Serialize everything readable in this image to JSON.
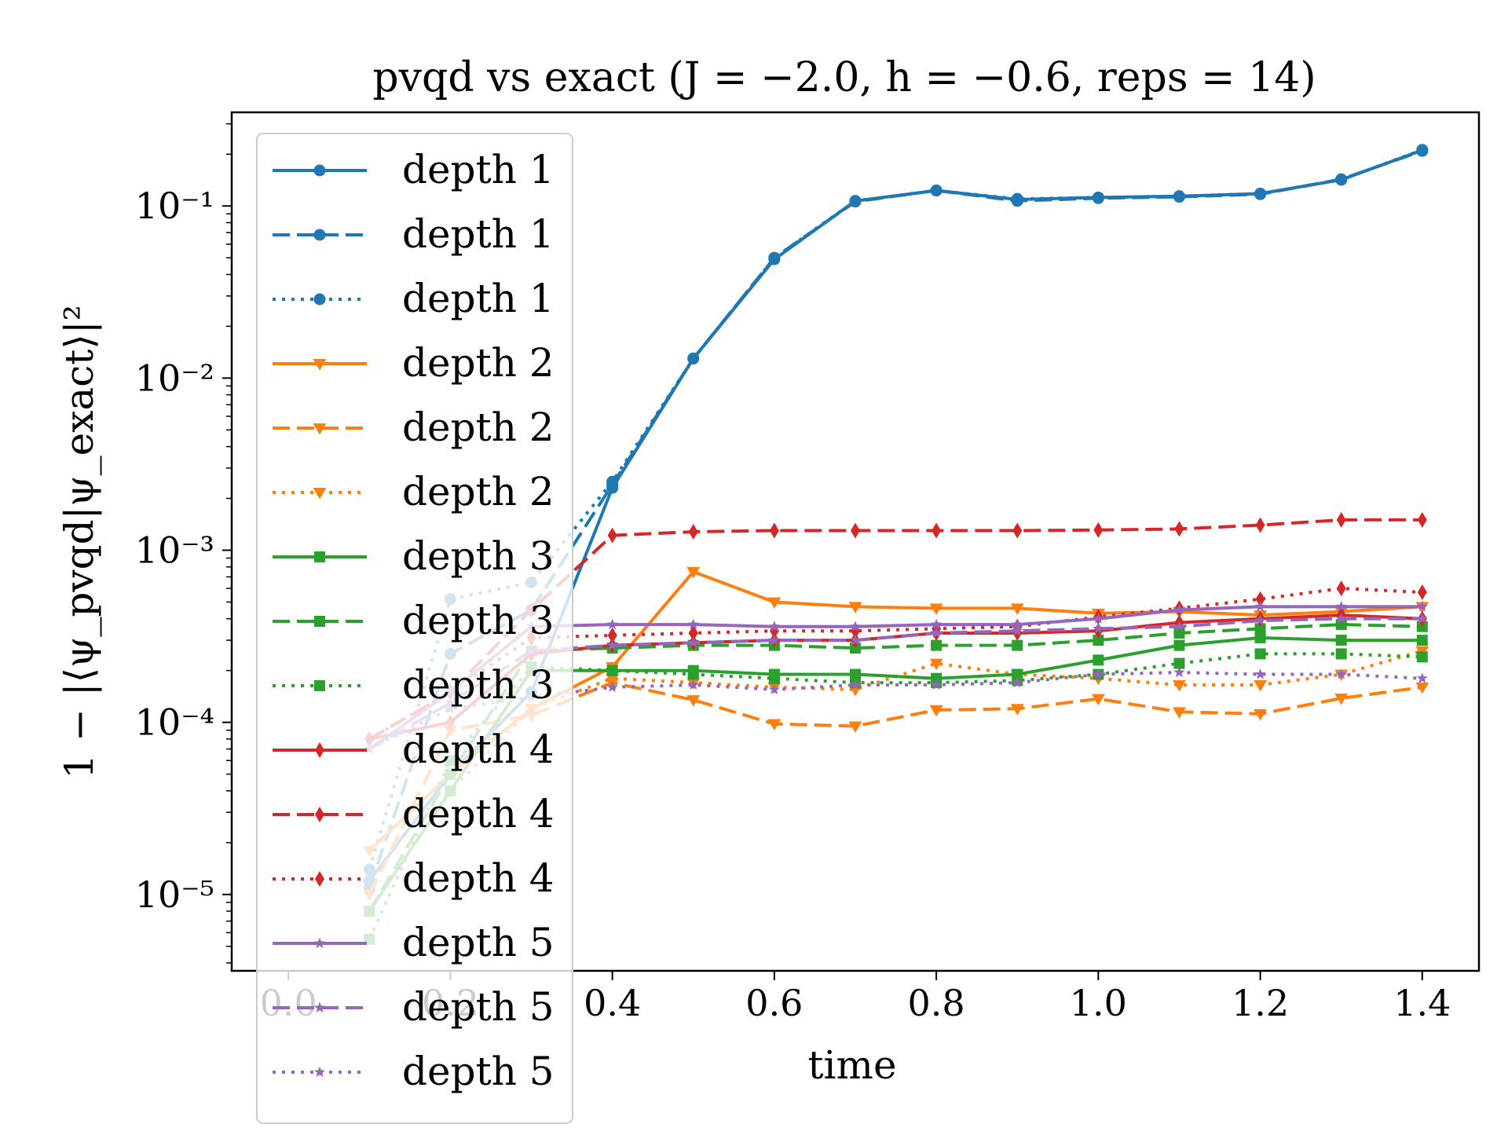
{
  "chart_data": {
    "type": "line",
    "title": "pvqd vs exact (J = −2.0, h = −0.6, reps = 14)",
    "xlabel": "time",
    "ylabel": "1 − |⟨ψ_pvqd|ψ_exact⟩|²",
    "yscale": "log",
    "xlim": [
      -0.07,
      1.47
    ],
    "ylim": [
      3.6e-06,
      0.35
    ],
    "x_ticks": [
      "0.0",
      "0.2",
      "0.4",
      "0.6",
      "0.8",
      "1.0",
      "1.2",
      "1.4"
    ],
    "y_ticks": [
      "10⁻⁵",
      "10⁻⁴",
      "10⁻³",
      "10⁻²",
      "10⁻¹"
    ],
    "legend_position": "upper-left",
    "x": [
      0.1,
      0.2,
      0.3,
      0.4,
      0.5,
      0.6,
      0.7,
      0.8,
      0.9,
      1.0,
      1.1,
      1.2,
      1.3,
      1.4
    ],
    "series": [
      {
        "name": "depth 1",
        "color": "#1f77b4",
        "linestyle": "solid",
        "marker": "circle",
        "values": [
          1.2e-05,
          5e-05,
          0.00015,
          0.0023,
          0.013,
          0.049,
          0.107,
          0.123,
          0.109,
          0.112,
          0.114,
          0.118,
          0.142,
          0.211
        ]
      },
      {
        "name": "depth 1",
        "color": "#1f77b4",
        "linestyle": "dashed",
        "marker": "circle",
        "values": [
          1.1e-05,
          0.00025,
          0.00045,
          0.0024,
          0.013,
          0.05,
          0.106,
          0.123,
          0.107,
          0.111,
          0.113,
          0.117,
          0.143,
          0.209
        ]
      },
      {
        "name": "depth 1",
        "color": "#1f77b4",
        "linestyle": "dotted",
        "marker": "circle",
        "values": [
          1.4e-05,
          0.00052,
          0.00065,
          0.0025,
          0.013,
          0.05,
          0.107,
          0.123,
          0.11,
          0.112,
          0.114,
          0.118,
          0.142,
          0.212
        ]
      },
      {
        "name": "depth 2",
        "color": "#ff7f0e",
        "linestyle": "solid",
        "marker": "triangle-down",
        "values": [
          1.8e-05,
          5e-05,
          0.00012,
          0.00021,
          0.00075,
          0.0005,
          0.00047,
          0.00046,
          0.00046,
          0.00043,
          0.00044,
          0.00042,
          0.00044,
          0.00047
        ]
      },
      {
        "name": "depth 2",
        "color": "#ff7f0e",
        "linestyle": "dashed",
        "marker": "triangle-down",
        "values": [
          1e-05,
          9e-05,
          0.00011,
          0.00017,
          0.000135,
          9.8e-05,
          9.5e-05,
          0.000118,
          0.00012,
          0.000137,
          0.000115,
          0.000112,
          0.000138,
          0.00016
        ]
      },
      {
        "name": "depth 2",
        "color": "#ff7f0e",
        "linestyle": "dotted",
        "marker": "triangle-down",
        "values": [
          8e-06,
          4e-05,
          0.00012,
          0.00018,
          0.00017,
          0.00016,
          0.000155,
          0.00022,
          0.00019,
          0.00018,
          0.000165,
          0.000165,
          0.00019,
          0.00026
        ]
      },
      {
        "name": "depth 3",
        "color": "#2ca02c",
        "linestyle": "solid",
        "marker": "square",
        "values": [
          8e-06,
          4e-05,
          0.0002,
          0.0002,
          0.0002,
          0.00019,
          0.00019,
          0.00018,
          0.00019,
          0.00023,
          0.00028,
          0.00031,
          0.0003,
          0.0003
        ]
      },
      {
        "name": "depth 3",
        "color": "#2ca02c",
        "linestyle": "dashed",
        "marker": "square",
        "values": [
          8e-06,
          5e-05,
          0.00026,
          0.00027,
          0.00028,
          0.00028,
          0.00027,
          0.00028,
          0.00028,
          0.0003,
          0.00033,
          0.00035,
          0.00037,
          0.00036
        ]
      },
      {
        "name": "depth 3",
        "color": "#2ca02c",
        "linestyle": "dotted",
        "marker": "square",
        "values": [
          5.5e-06,
          6e-05,
          0.00021,
          0.0002,
          0.00019,
          0.00018,
          0.00017,
          0.00017,
          0.000175,
          0.00019,
          0.00022,
          0.00025,
          0.00025,
          0.00024
        ]
      },
      {
        "name": "depth 4",
        "color": "#d62728",
        "linestyle": "solid",
        "marker": "diamond",
        "values": [
          8e-05,
          0.0001,
          0.00025,
          0.00028,
          0.00029,
          0.0003,
          0.0003,
          0.00033,
          0.00033,
          0.00034,
          0.00038,
          0.0004,
          0.00042,
          0.0004
        ]
      },
      {
        "name": "depth 4",
        "color": "#d62728",
        "linestyle": "dashed",
        "marker": "diamond",
        "values": [
          8e-05,
          0.00015,
          0.00045,
          0.00122,
          0.00128,
          0.0013,
          0.0013,
          0.0013,
          0.0013,
          0.00131,
          0.00133,
          0.0014,
          0.0015,
          0.0015
        ]
      },
      {
        "name": "depth 4",
        "color": "#d62728",
        "linestyle": "dotted",
        "marker": "diamond",
        "values": [
          8e-05,
          0.00015,
          0.00031,
          0.00032,
          0.00033,
          0.00034,
          0.00034,
          0.00035,
          0.00036,
          0.00041,
          0.00046,
          0.00052,
          0.0006,
          0.00057
        ]
      },
      {
        "name": "depth 5",
        "color": "#9467bd",
        "linestyle": "solid",
        "marker": "star",
        "values": [
          7e-05,
          0.00015,
          0.00036,
          0.00037,
          0.00037,
          0.00036,
          0.00036,
          0.00037,
          0.00037,
          0.0004,
          0.00045,
          0.00047,
          0.00047,
          0.00047
        ]
      },
      {
        "name": "depth 5",
        "color": "#9467bd",
        "linestyle": "dashed",
        "marker": "star",
        "values": [
          7e-05,
          0.00013,
          0.00026,
          0.00028,
          0.00029,
          0.0003,
          0.0003,
          0.00033,
          0.00034,
          0.00035,
          0.00036,
          0.00039,
          0.0004,
          0.0004
        ]
      },
      {
        "name": "depth 5",
        "color": "#9467bd",
        "linestyle": "dotted",
        "marker": "star",
        "values": [
          7e-05,
          0.00012,
          0.00014,
          0.00016,
          0.000165,
          0.000155,
          0.000165,
          0.000165,
          0.00017,
          0.00019,
          0.000195,
          0.00019,
          0.00019,
          0.00018
        ]
      }
    ]
  }
}
